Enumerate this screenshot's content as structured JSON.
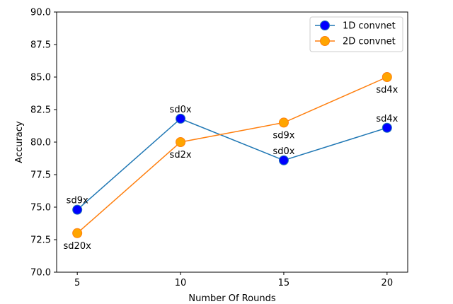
{
  "chart_data": {
    "type": "line",
    "title": "",
    "xlabel": "Number Of Rounds",
    "ylabel": "Accuracy",
    "x": [
      5,
      10,
      15,
      20
    ],
    "xticks": [
      5,
      10,
      15,
      20
    ],
    "xlim": [
      4,
      21
    ],
    "ylim": [
      70.0,
      90.0
    ],
    "yticks": [
      70.0,
      72.5,
      75.0,
      77.5,
      80.0,
      82.5,
      85.0,
      87.5,
      90.0
    ],
    "ytick_labels": [
      "70.0",
      "72.5",
      "75.0",
      "77.5",
      "80.0",
      "82.5",
      "85.0",
      "87.5",
      "90.0"
    ],
    "grid": false,
    "legend_position": "top-right",
    "series": [
      {
        "name": "1D convnet",
        "line_color": "#1f77b4",
        "marker_color": "#0000ff",
        "values": [
          74.8,
          81.8,
          78.6,
          81.1
        ],
        "point_labels": [
          "sd9x",
          "sd0x",
          "sd0x",
          "sd4x"
        ],
        "label_side": [
          "above",
          "above",
          "above",
          "above"
        ]
      },
      {
        "name": "2D convnet",
        "line_color": "#ff7f0e",
        "marker_color": "#ffa500",
        "values": [
          73.0,
          80.0,
          81.5,
          85.0
        ],
        "point_labels": [
          "sd20x",
          "sd2x",
          "sd9x",
          "sd4x"
        ],
        "label_side": [
          "below",
          "below",
          "below",
          "below"
        ]
      }
    ]
  }
}
